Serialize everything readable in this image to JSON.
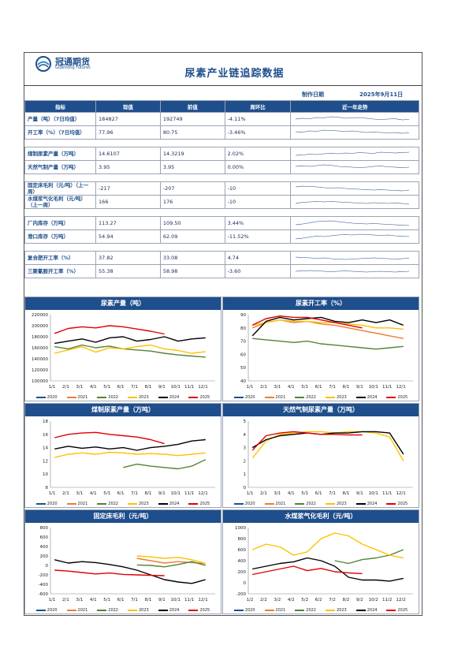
{
  "header": {
    "logo_cn": "冠通期货",
    "logo_en": "Guantong Futures",
    "title": "尿素产业链追踪数据",
    "date_label": "制作日期",
    "date_value": "2025年9月11日"
  },
  "table": {
    "columns": [
      "指标",
      "现值",
      "前值",
      "周环比",
      "近一年走势"
    ],
    "groups": [
      [
        {
          "indicator": "产量（吨）（7日均值）",
          "current": "184827",
          "previous": "192749",
          "change": "-4.11%"
        },
        {
          "indicator": "开工率（%）（7日均值）",
          "current": "77.96",
          "previous": "80.75",
          "change": "-3.46%"
        }
      ],
      [
        {
          "indicator": "煤制尿素产量（万吨）",
          "current": "14.6107",
          "previous": "14.3219",
          "change": "2.02%"
        },
        {
          "indicator": "天然气制产量（万吨）",
          "current": "3.95",
          "previous": "3.95",
          "change": "0.00%"
        }
      ],
      [
        {
          "indicator": "固定床毛利（元/吨）（上一周）",
          "current": "-217",
          "previous": "-207",
          "change": "-10"
        },
        {
          "indicator": "水煤浆气化毛利（元/吨）（上一周）",
          "current": "166",
          "previous": "176",
          "change": "-10"
        }
      ],
      [
        {
          "indicator": "厂内库存（万吨）",
          "current": "113.27",
          "previous": "109.50",
          "change": "3.44%"
        },
        {
          "indicator": "港口库存（万吨）",
          "current": "54.94",
          "previous": "62.09",
          "change": "-11.52%"
        }
      ],
      [
        {
          "indicator": "复合肥开工率（%）",
          "current": "37.82",
          "previous": "33.08",
          "change": "4.74"
        },
        {
          "indicator": "三聚氰胺开工率（%）",
          "current": "55.38",
          "previous": "58.98",
          "change": "-3.60"
        }
      ]
    ]
  },
  "legend_colors": {
    "2020": "#1f4e8c",
    "2021": "#ed7d31",
    "2022": "#548235",
    "2023": "#ffc000",
    "2024": "#000000",
    "2025": "#e00000"
  },
  "chart_data": [
    {
      "type": "line",
      "title": "尿素产量（吨）",
      "x_ticks": [
        "1/1",
        "2/1",
        "3/1",
        "4/1",
        "5/1",
        "6/1",
        "7/1",
        "8/1",
        "9/1",
        "10/1",
        "11/1",
        "12/1"
      ],
      "y_ticks": [
        "100000",
        "120000",
        "140000",
        "160000",
        "180000",
        "200000",
        "220000"
      ],
      "ylim": [
        100000,
        220000
      ],
      "series": [
        {
          "name": "2020",
          "values": []
        },
        {
          "name": "2021",
          "values": []
        },
        {
          "name": "2022",
          "values": [
            162000,
            158000,
            165000,
            160000,
            163000,
            158000,
            156000,
            154000,
            150000,
            147000,
            145000,
            143000
          ]
        },
        {
          "name": "2023",
          "values": [
            150000,
            156000,
            162000,
            152000,
            160000,
            158000,
            162000,
            165000,
            158000,
            155000,
            150000,
            153000
          ]
        },
        {
          "name": "2024",
          "values": [
            168000,
            172000,
            176000,
            170000,
            178000,
            180000,
            172000,
            175000,
            180000,
            172000,
            176000,
            178000
          ]
        },
        {
          "name": "2025",
          "values": [
            186000,
            195000,
            198000,
            196000,
            200000,
            198000,
            194000,
            190000,
            185000
          ]
        }
      ]
    },
    {
      "type": "line",
      "title": "尿素开工率（%）",
      "x_ticks": [
        "1/1",
        "2/1",
        "3/1",
        "4/1",
        "5/1",
        "6/1",
        "7/1",
        "8/1",
        "9/1",
        "10/1",
        "11/1",
        "12/1"
      ],
      "y_ticks": [
        "40",
        "50",
        "60",
        "70",
        "80",
        "90"
      ],
      "ylim": [
        40,
        90
      ],
      "series": [
        {
          "name": "2020",
          "values": []
        },
        {
          "name": "2021",
          "values": [
            80,
            84,
            86,
            84,
            85,
            83,
            82,
            80,
            78,
            76,
            74,
            72
          ]
        },
        {
          "name": "2022",
          "values": [
            72,
            71,
            70,
            69,
            70,
            68,
            67,
            66,
            65,
            64,
            65,
            66
          ]
        },
        {
          "name": "2023",
          "values": [
            82,
            84,
            86,
            85,
            85,
            84,
            84,
            83,
            82,
            80,
            80,
            79
          ]
        },
        {
          "name": "2024",
          "values": [
            74,
            85,
            88,
            86,
            87,
            88,
            85,
            84,
            86,
            84,
            86,
            82
          ]
        },
        {
          "name": "2025",
          "values": [
            82,
            87,
            89,
            88,
            88,
            86,
            84,
            82,
            80
          ]
        }
      ]
    },
    {
      "type": "line",
      "title": "煤制尿素产量（万吨）",
      "x_ticks": [
        "1/1",
        "2/1",
        "3/1",
        "4/1",
        "5/1",
        "6/1",
        "7/1",
        "8/1",
        "9/1",
        "10/1",
        "11/1",
        "12/1"
      ],
      "y_ticks": [
        "8",
        "10",
        "12",
        "14",
        "16",
        "18"
      ],
      "ylim": [
        8,
        18
      ],
      "series": [
        {
          "name": "2020",
          "values": []
        },
        {
          "name": "2021",
          "values": []
        },
        {
          "name": "2022",
          "values": [
            11,
            11.5,
            11.2,
            11,
            10.8,
            11.2,
            12.2
          ]
        },
        {
          "name": "2023",
          "values": [
            12.5,
            13,
            13.2,
            13,
            13.3,
            13.2,
            13,
            13.1,
            13,
            12.8,
            13,
            13.2
          ]
        },
        {
          "name": "2024",
          "values": [
            13.8,
            14.2,
            13.9,
            14.1,
            13.8,
            14,
            13.6,
            14,
            14.2,
            14.5,
            15,
            15.2
          ]
        },
        {
          "name": "2025",
          "values": [
            15.5,
            16,
            16.2,
            16.3,
            16,
            15.8,
            15.6,
            15.2,
            14.6
          ]
        }
      ]
    },
    {
      "type": "line",
      "title": "天然气制尿素产量（万吨）",
      "x_ticks": [
        "1/1",
        "2/1",
        "3/1",
        "4/1",
        "5/1",
        "6/1",
        "7/1",
        "8/1",
        "9/1",
        "10/1",
        "11/1",
        "12/1"
      ],
      "y_ticks": [
        "0",
        "1",
        "2",
        "3",
        "4",
        "5"
      ],
      "ylim": [
        0,
        5
      ],
      "series": [
        {
          "name": "2020",
          "values": []
        },
        {
          "name": "2021",
          "values": []
        },
        {
          "name": "2022",
          "values": []
        },
        {
          "name": "2023",
          "values": [
            2.2,
            3.5,
            4,
            4.1,
            4.2,
            4.2,
            4.1,
            4.2,
            4.2,
            4.1,
            3.8,
            2.0
          ]
        },
        {
          "name": "2024",
          "values": [
            3.0,
            3.6,
            3.9,
            4.0,
            4.1,
            4.0,
            4.1,
            4.1,
            4.2,
            4.2,
            4.1,
            2.5
          ]
        },
        {
          "name": "2025",
          "values": [
            2.8,
            3.9,
            4.1,
            4.2,
            4.1,
            4.0,
            4.0,
            3.95,
            3.95
          ]
        }
      ]
    },
    {
      "type": "line",
      "title": "固定床毛利（元/吨）",
      "x_ticks": [
        "1/1",
        "2/1",
        "3/1",
        "4/1",
        "5/1",
        "6/1",
        "7/1",
        "8/1",
        "9/1",
        "10/1",
        "11/1",
        "12/1"
      ],
      "y_ticks": [
        "-600",
        "-400",
        "-200",
        "0",
        "200",
        "400",
        "600",
        "800"
      ],
      "ylim": [
        -600,
        800
      ],
      "series": [
        {
          "name": "2020",
          "values": []
        },
        {
          "name": "2021",
          "values": [
            150,
            100,
            50,
            80,
            60,
            40
          ]
        },
        {
          "name": "2022",
          "values": [
            10,
            0,
            -30,
            20,
            80,
            0
          ]
        },
        {
          "name": "2023",
          "values": [
            200,
            180,
            150,
            170,
            120,
            40
          ]
        },
        {
          "name": "2024",
          "values": [
            120,
            50,
            80,
            60,
            20,
            -30,
            -100,
            -200,
            -300,
            -350,
            -380,
            -300
          ]
        },
        {
          "name": "2025",
          "values": [
            -100,
            -120,
            -150,
            -180,
            -160,
            -190,
            -200,
            -210,
            -217
          ]
        }
      ]
    },
    {
      "type": "line",
      "title": "水煤浆气化毛利（元/吨）",
      "x_ticks": [
        "1/2",
        "2/2",
        "3/2",
        "4/2",
        "5/2",
        "6/2",
        "7/2",
        "8/2",
        "9/2",
        "10/2",
        "11/2",
        "12/2"
      ],
      "y_ticks": [
        "-200",
        "0",
        "200",
        "400",
        "600",
        "800",
        "1000"
      ],
      "ylim": [
        -200,
        1000
      ],
      "series": [
        {
          "name": "2020",
          "values": []
        },
        {
          "name": "2021",
          "values": []
        },
        {
          "name": "2022",
          "values": [
            400,
            350,
            420,
            450,
            500,
            600
          ]
        },
        {
          "name": "2023",
          "values": [
            600,
            700,
            650,
            500,
            560,
            800,
            900,
            850,
            700,
            600,
            500,
            450
          ]
        },
        {
          "name": "2024",
          "values": [
            250,
            300,
            350,
            380,
            450,
            400,
            300,
            100,
            50,
            50,
            30,
            80
          ]
        },
        {
          "name": "2025",
          "values": [
            150,
            200,
            250,
            300,
            220,
            260,
            200,
            180,
            166
          ]
        }
      ]
    }
  ],
  "sparklines": [
    [
      0.5,
      0.6,
      0.55,
      0.7,
      0.65,
      0.8,
      0.75,
      0.6,
      0.65,
      0.7,
      0.6,
      0.5,
      0.45,
      0.5,
      0.55,
      0.4,
      0.45
    ],
    [
      0.6,
      0.55,
      0.7,
      0.65,
      0.8,
      0.75,
      0.7,
      0.65,
      0.7,
      0.6,
      0.5,
      0.55,
      0.5,
      0.45,
      0.5,
      0.4,
      0.45
    ],
    [
      0.3,
      0.35,
      0.45,
      0.4,
      0.5,
      0.55,
      0.5,
      0.6,
      0.55,
      0.65,
      0.6,
      0.55,
      0.7,
      0.65,
      0.6,
      0.65,
      0.7
    ],
    [
      0.6,
      0.65,
      0.6,
      0.7,
      0.8,
      0.75,
      0.6,
      0.55,
      0.5,
      0.45,
      0.5,
      0.6,
      0.65,
      0.55,
      0.5,
      0.45,
      0.5
    ],
    [
      0.7,
      0.8,
      0.75,
      0.7,
      0.6,
      0.55,
      0.6,
      0.5,
      0.45,
      0.4,
      0.35,
      0.3,
      0.35,
      0.3,
      0.25,
      0.2,
      0.3
    ],
    [
      0.3,
      0.45,
      0.5,
      0.55,
      0.5,
      0.55,
      0.5,
      0.45,
      0.4,
      0.35,
      0.3,
      0.4,
      0.35,
      0.3,
      0.35,
      0.3,
      0.25
    ],
    [
      0.3,
      0.4,
      0.55,
      0.7,
      0.75,
      0.8,
      0.7,
      0.6,
      0.5,
      0.45,
      0.4,
      0.45,
      0.4,
      0.35,
      0.3,
      0.25,
      0.2
    ],
    [
      0.2,
      0.3,
      0.45,
      0.55,
      0.5,
      0.6,
      0.7,
      0.75,
      0.7,
      0.8,
      0.75,
      0.7,
      0.65,
      0.7,
      0.6,
      0.55,
      0.5
    ],
    [
      0.6,
      0.55,
      0.5,
      0.45,
      0.5,
      0.4,
      0.35,
      0.3,
      0.35,
      0.4,
      0.45,
      0.5,
      0.45,
      0.4,
      0.35,
      0.4,
      0.45
    ],
    [
      0.5,
      0.55,
      0.6,
      0.55,
      0.5,
      0.45,
      0.5,
      0.55,
      0.5,
      0.45,
      0.4,
      0.45,
      0.5,
      0.45,
      0.4,
      0.45,
      0.5
    ]
  ]
}
